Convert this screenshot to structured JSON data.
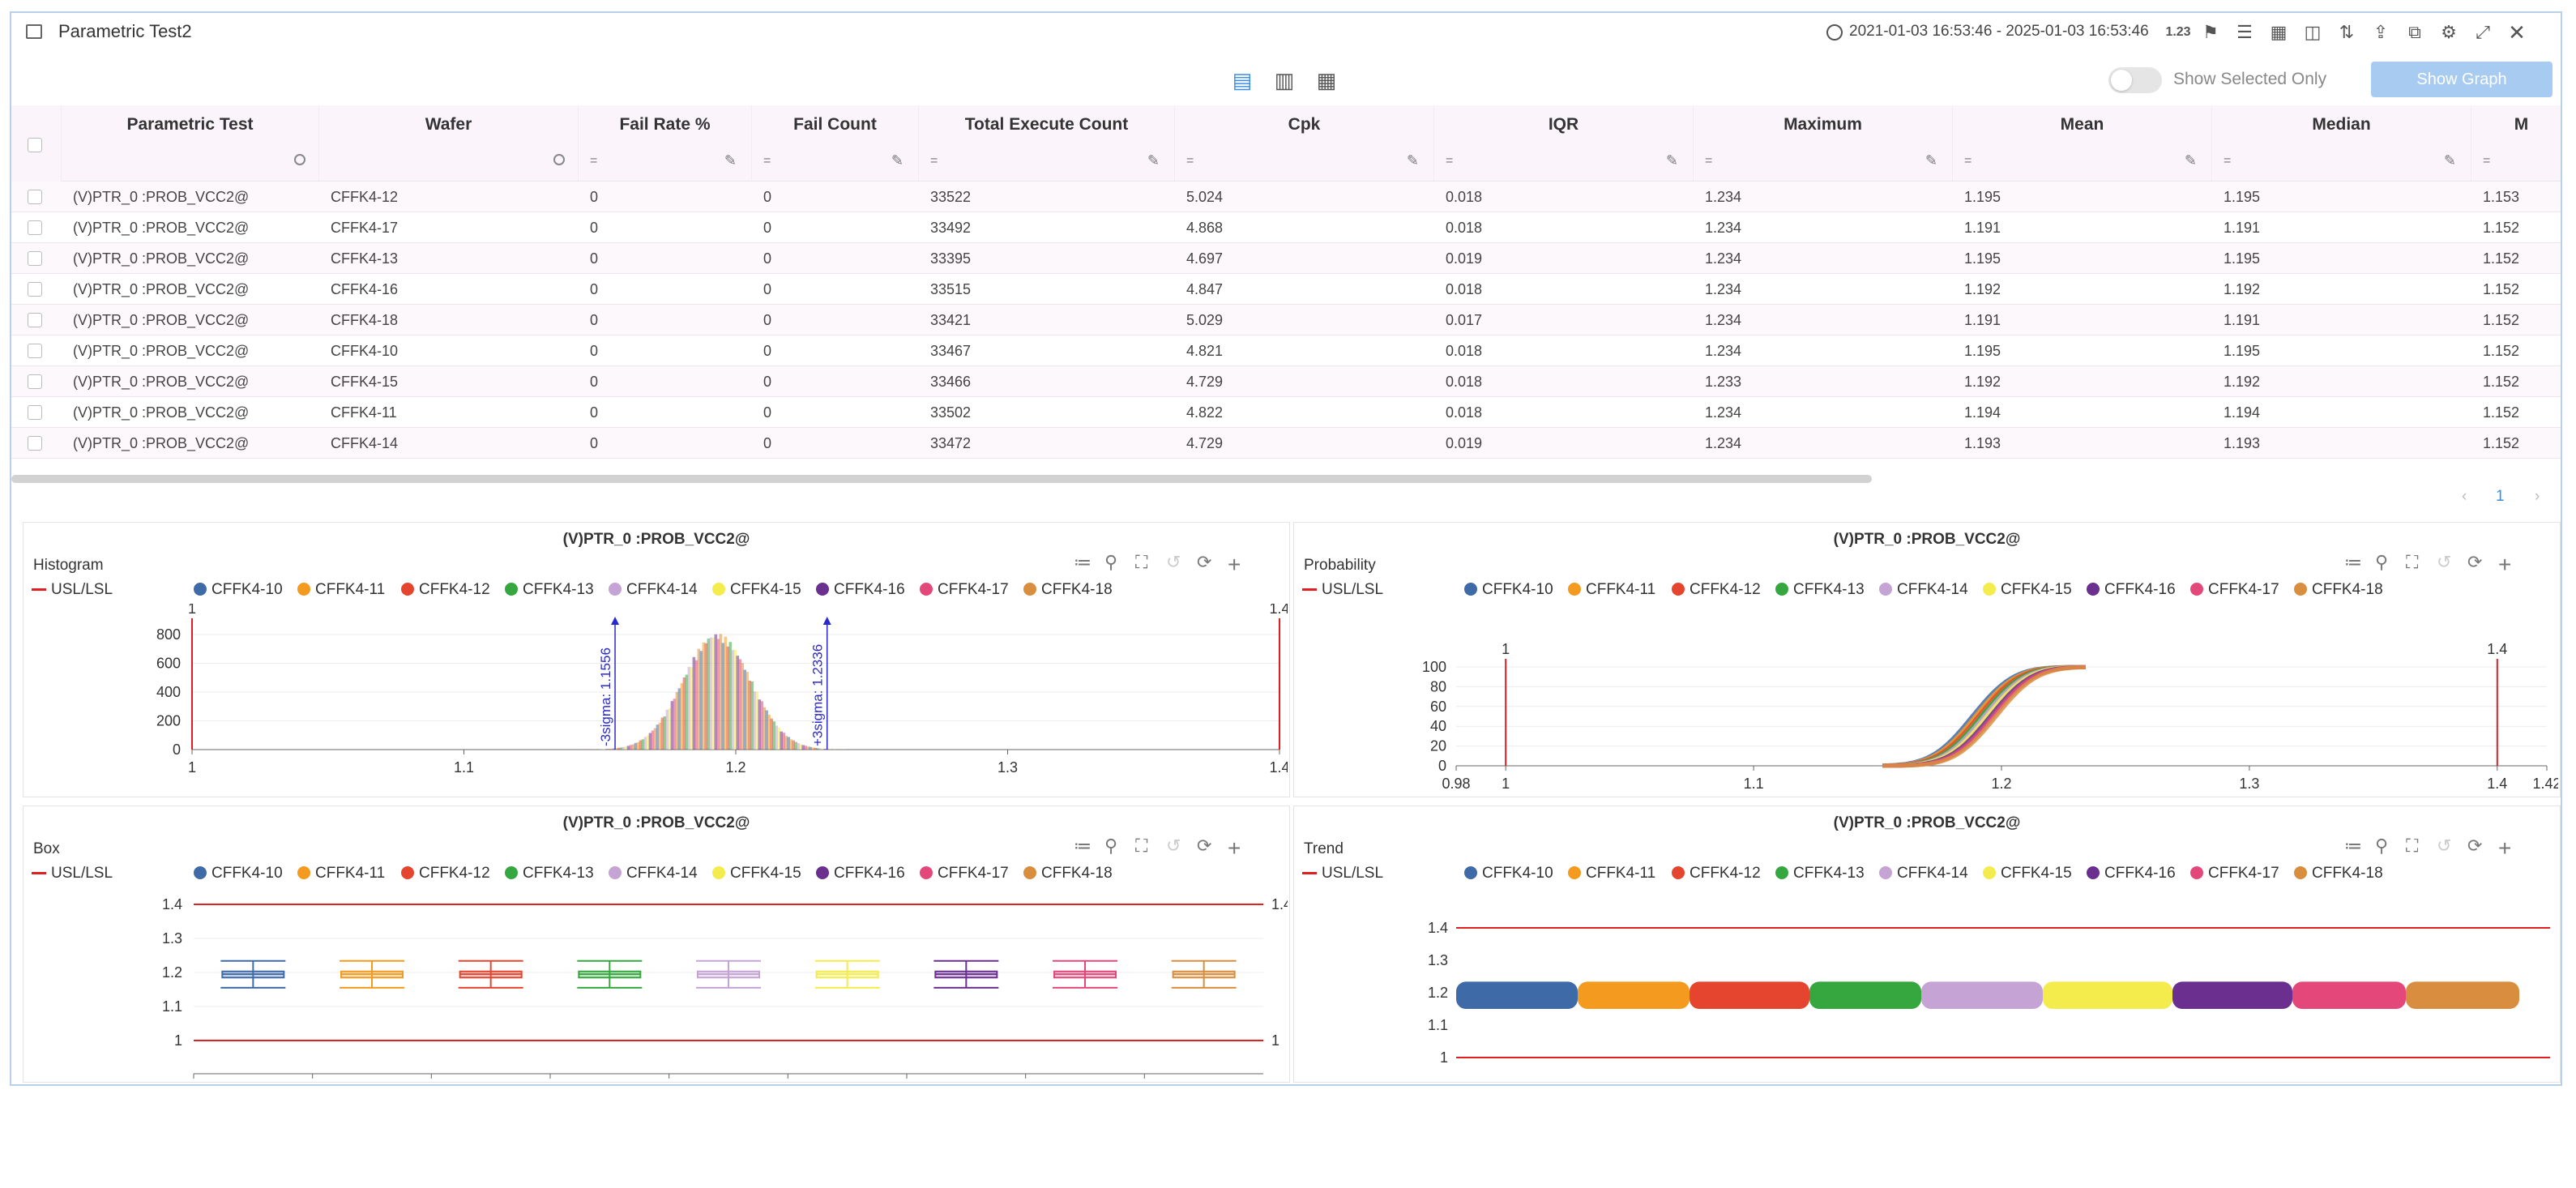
{
  "window": {
    "title": "Parametric Test2",
    "range": "2021-01-03 16:53:46 - 2025-01-03 16:53:46",
    "format_label": "1.23"
  },
  "toolbar": {
    "show_selected_label": "Show Selected Only",
    "show_graph_label": "Show Graph",
    "page": "1"
  },
  "table": {
    "columns": [
      "Parametric Test",
      "Wafer",
      "Fail Rate %",
      "Fail Count",
      "Total Execute Count",
      "Cpk",
      "IQR",
      "Maximum",
      "Mean",
      "Median",
      "M"
    ],
    "filter_symbol": "=",
    "rows": [
      [
        "(V)PTR_0 :PROB_VCC2@",
        "CFFK4-12",
        "0",
        "0",
        "33522",
        "5.024",
        "0.018",
        "1.234",
        "1.195",
        "1.195",
        "1.153"
      ],
      [
        "(V)PTR_0 :PROB_VCC2@",
        "CFFK4-17",
        "0",
        "0",
        "33492",
        "4.868",
        "0.018",
        "1.234",
        "1.191",
        "1.191",
        "1.152"
      ],
      [
        "(V)PTR_0 :PROB_VCC2@",
        "CFFK4-13",
        "0",
        "0",
        "33395",
        "4.697",
        "0.019",
        "1.234",
        "1.195",
        "1.195",
        "1.152"
      ],
      [
        "(V)PTR_0 :PROB_VCC2@",
        "CFFK4-16",
        "0",
        "0",
        "33515",
        "4.847",
        "0.018",
        "1.234",
        "1.192",
        "1.192",
        "1.152"
      ],
      [
        "(V)PTR_0 :PROB_VCC2@",
        "CFFK4-18",
        "0",
        "0",
        "33421",
        "5.029",
        "0.017",
        "1.234",
        "1.191",
        "1.191",
        "1.152"
      ],
      [
        "(V)PTR_0 :PROB_VCC2@",
        "CFFK4-10",
        "0",
        "0",
        "33467",
        "4.821",
        "0.018",
        "1.234",
        "1.195",
        "1.195",
        "1.152"
      ],
      [
        "(V)PTR_0 :PROB_VCC2@",
        "CFFK4-15",
        "0",
        "0",
        "33466",
        "4.729",
        "0.018",
        "1.233",
        "1.192",
        "1.192",
        "1.152"
      ],
      [
        "(V)PTR_0 :PROB_VCC2@",
        "CFFK4-11",
        "0",
        "0",
        "33502",
        "4.822",
        "0.018",
        "1.234",
        "1.194",
        "1.194",
        "1.152"
      ],
      [
        "(V)PTR_0 :PROB_VCC2@",
        "CFFK4-14",
        "0",
        "0",
        "33472",
        "4.729",
        "0.019",
        "1.234",
        "1.193",
        "1.193",
        "1.152"
      ]
    ]
  },
  "legend": {
    "usl_label": "USL/LSL",
    "usl_color": "#e02020",
    "series": [
      {
        "name": "CFFK4-10",
        "color": "#3e6aa8"
      },
      {
        "name": "CFFK4-11",
        "color": "#f39a1f"
      },
      {
        "name": "CFFK4-12",
        "color": "#e5452f"
      },
      {
        "name": "CFFK4-13",
        "color": "#35a73e"
      },
      {
        "name": "CFFK4-14",
        "color": "#c5a3d4"
      },
      {
        "name": "CFFK4-15",
        "color": "#f4ec4c"
      },
      {
        "name": "CFFK4-16",
        "color": "#6a2f8f"
      },
      {
        "name": "CFFK4-17",
        "color": "#e4487a"
      },
      {
        "name": "CFFK4-18",
        "color": "#d88e3e"
      }
    ]
  },
  "panels": {
    "histogram": {
      "title": "(V)PTR_0 :PROB_VCC2@",
      "name": "Histogram"
    },
    "probability": {
      "title": "(V)PTR_0 :PROB_VCC2@",
      "name": "Probability"
    },
    "box": {
      "title": "(V)PTR_0 :PROB_VCC2@",
      "name": "Box"
    },
    "trend": {
      "title": "(V)PTR_0 :PROB_VCC2@",
      "name": "Trend"
    }
  },
  "chart_data": [
    {
      "type": "bar",
      "name": "histogram",
      "xlim": [
        1,
        1.4
      ],
      "x_ticks": [
        "1",
        "1.1",
        "1.2",
        "1.3",
        "1.4"
      ],
      "ylim": [
        0,
        800
      ],
      "y_ticks": [
        "0",
        "200",
        "400",
        "600",
        "800"
      ],
      "lsl": 1,
      "usl": 1.4,
      "lsl_label": "1",
      "usl_label": "1.4",
      "peak_x": 1.193,
      "peak_y": 810,
      "spread": 0.0125,
      "annotations": [
        {
          "label": "-3sigma: 1.1556",
          "x": 1.1556
        },
        {
          "label": "+3sigma: 1.2336",
          "x": 1.2336
        }
      ]
    },
    {
      "type": "line",
      "name": "probability",
      "xlim": [
        0.98,
        1.42
      ],
      "x_ticks": [
        "0.98",
        "1",
        "1.1",
        "1.2",
        "1.3",
        "1.4",
        "1.42"
      ],
      "x_tick_values": [
        0.98,
        1,
        1.1,
        1.2,
        1.3,
        1.4,
        1.42
      ],
      "ylim": [
        0,
        100
      ],
      "y_ticks": [
        "0",
        "20",
        "40",
        "60",
        "80",
        "100"
      ],
      "lsl": 1,
      "usl": 1.4,
      "lsl_label": "1",
      "usl_label": "1.4",
      "x_start": 1.152,
      "x_end": 1.234,
      "mean": 1.193,
      "sd": 0.013
    },
    {
      "type": "box",
      "name": "box",
      "categories": [
        "CFFK4-10",
        "CFFK4-11",
        "CFFK4-12",
        "CFFK4-13",
        "CFFK4-14",
        "CFFK4-15",
        "CFFK4-16",
        "CFFK4-17",
        "CFFK4-18"
      ],
      "ylim": [
        0.95,
        1.45
      ],
      "y_ticks": [
        "1",
        "1.1",
        "1.2",
        "1.3",
        "1.4"
      ],
      "lsl": 1,
      "usl": 1.4,
      "lsl_label": "1",
      "usl_label": "1.4",
      "q1": 1.185,
      "median": 1.195,
      "q3": 1.203,
      "whisker_low": 1.155,
      "whisker_high": 1.234
    },
    {
      "type": "scatter",
      "name": "trend",
      "categories": [
        "CFFK4-10",
        "CFFK4-11",
        "CFFK4-12",
        "CFFK4-13",
        "CFFK4-14",
        "CFFK4-15",
        "CFFK4-16",
        "CFFK4-17",
        "CFFK4-18"
      ],
      "ylim": [
        0.95,
        1.45
      ],
      "y_ticks": [
        "1",
        "1.1",
        "1.2",
        "1.3",
        "1.4"
      ],
      "lsl": 1,
      "usl": 1.4,
      "lsl_label": "1",
      "usl_label": "1.4",
      "band_low": 1.15,
      "band_high": 1.234
    }
  ]
}
